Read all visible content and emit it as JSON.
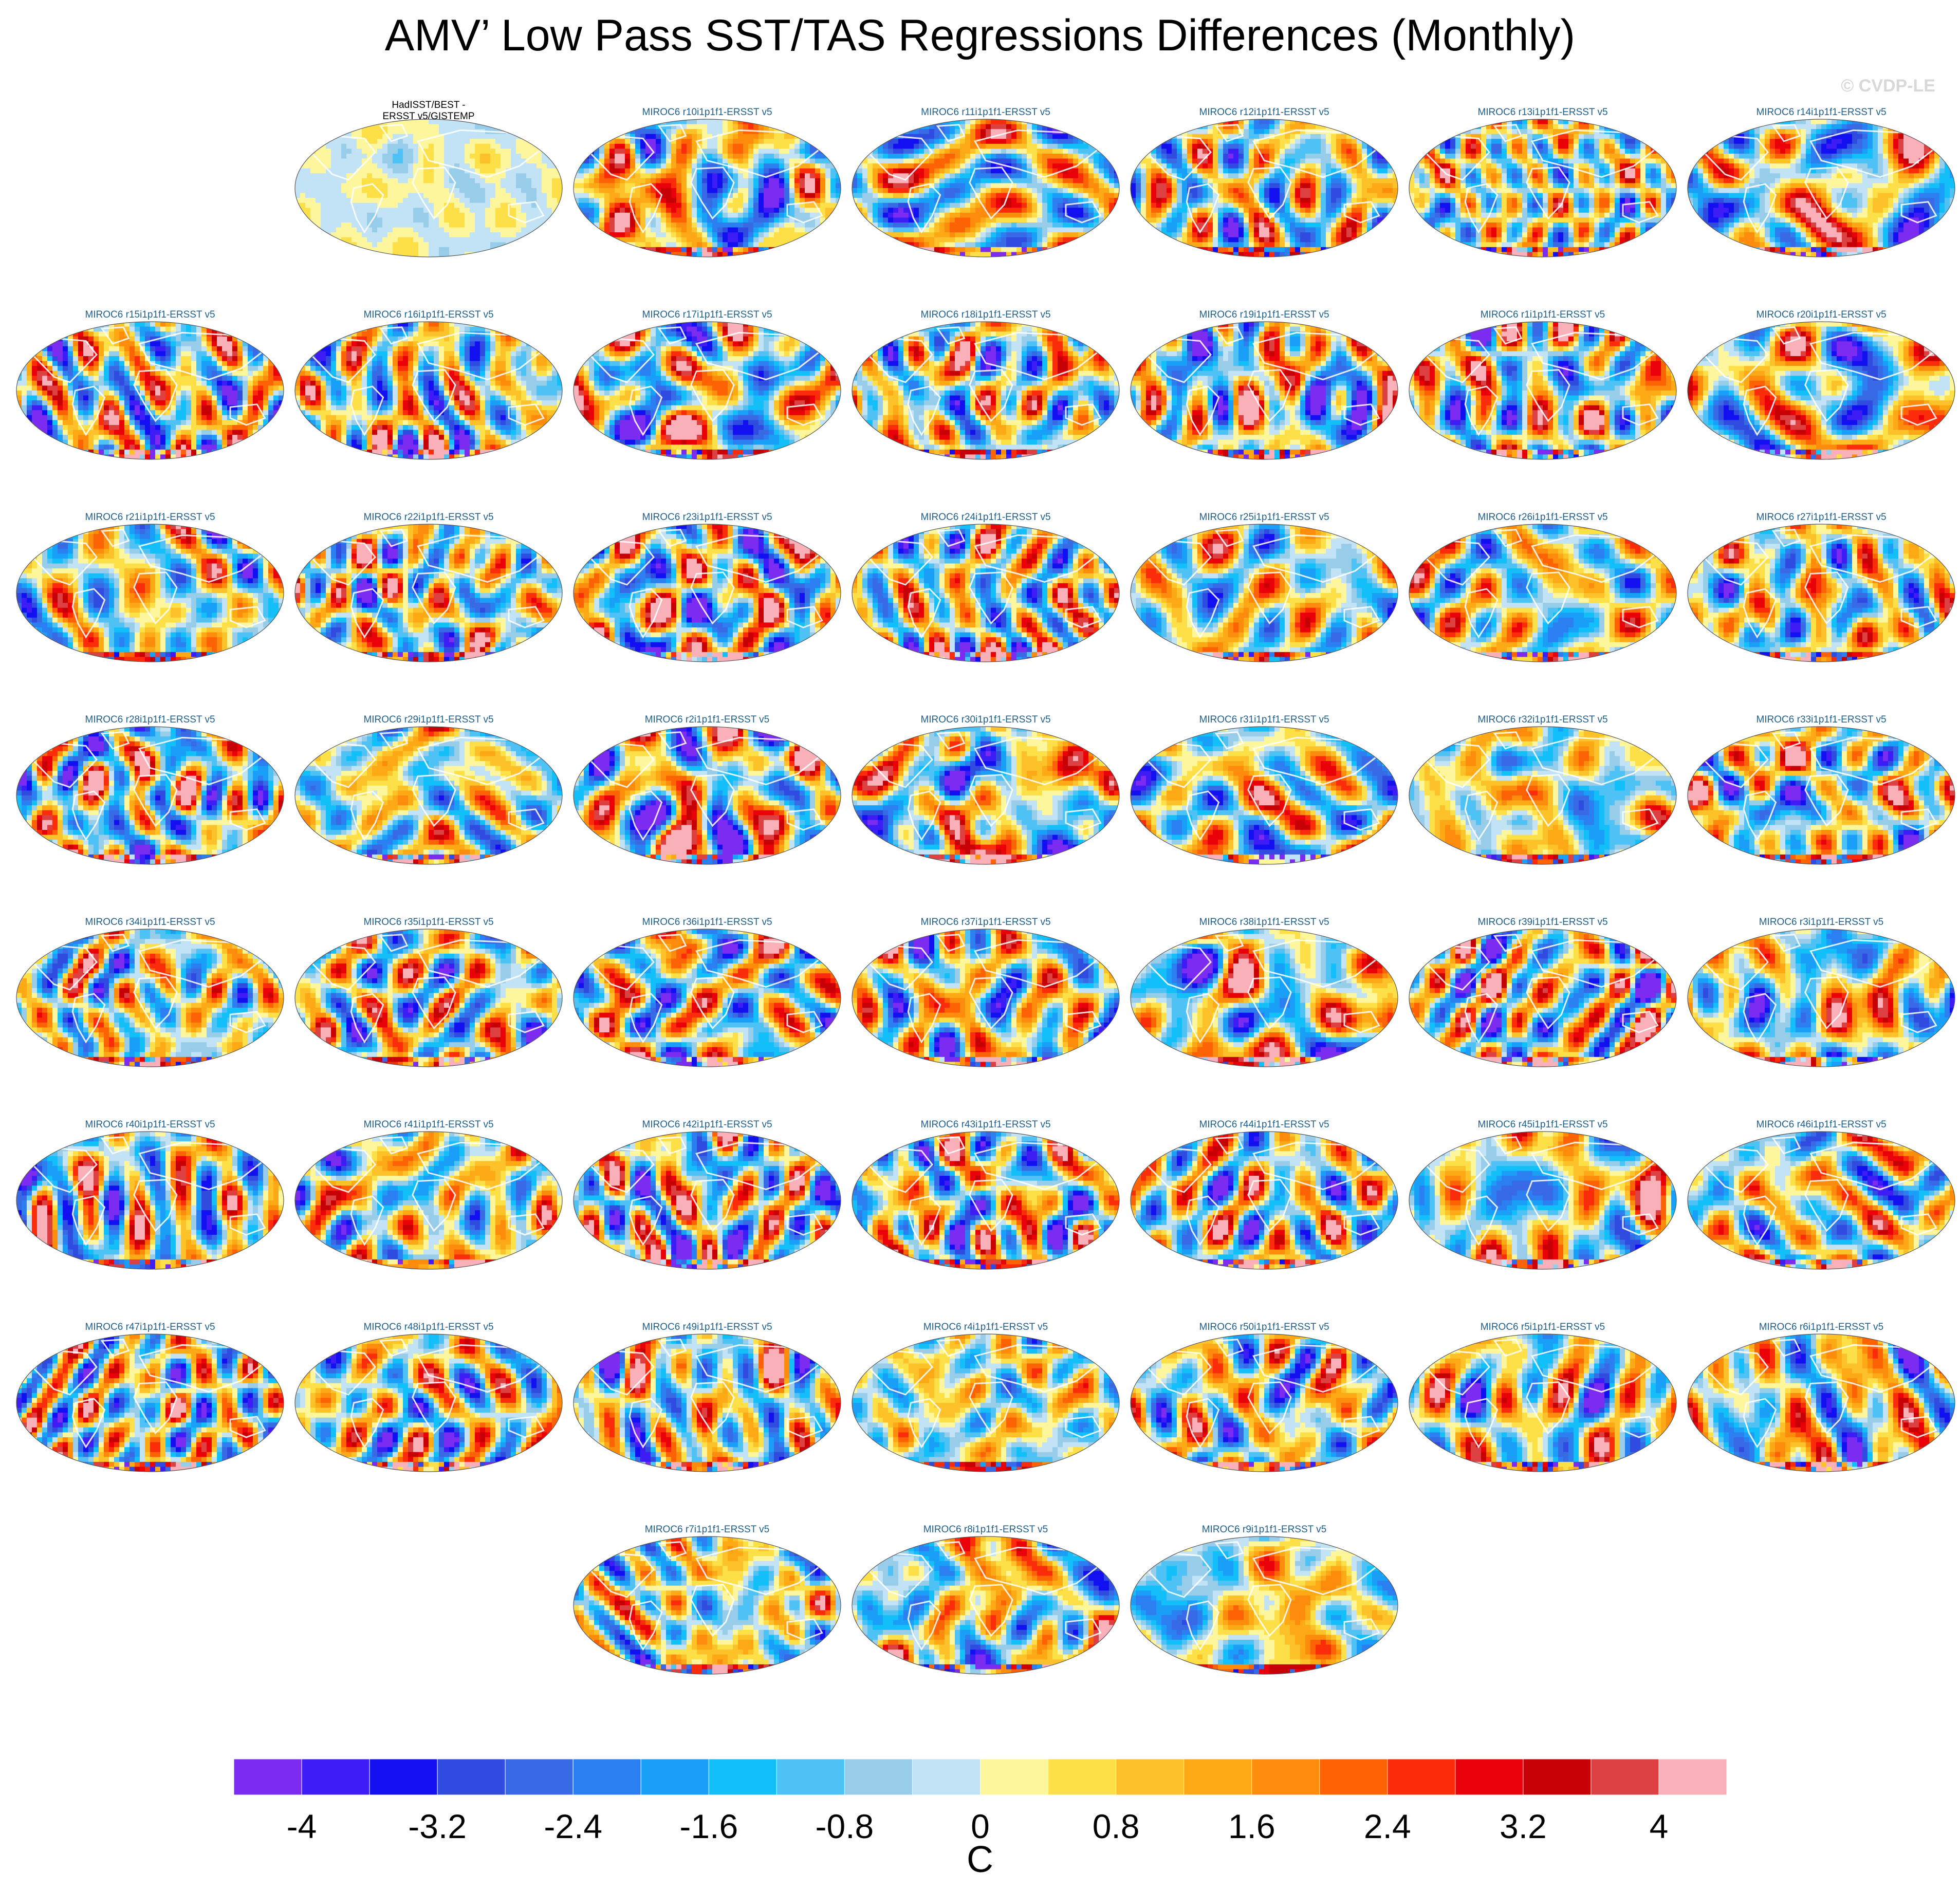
{
  "figure": {
    "title": "AMV’ Low Pass SST/TAS Regressions Differences (Monthly)",
    "copyright": "© CVDP-LE",
    "units": "C"
  },
  "chart_data": {
    "type": "heatmap",
    "title": "AMV’ Low Pass SST/TAS Regressions Differences (Monthly)",
    "projection": "Robinson global maps (ocean SST / land TAS difference fields)",
    "units": "C",
    "layout": {
      "rows": 8,
      "columns": 7
    },
    "panels": [
      {
        "row": 0,
        "col": 1,
        "label": "HadISST/BEST -\nERSST v5/GISTEMP",
        "kind": "observations"
      },
      {
        "row": 0,
        "col": 2,
        "label": "MIROC6 r10i1p1f1-ERSST v5",
        "kind": "member"
      },
      {
        "row": 0,
        "col": 3,
        "label": "MIROC6 r11i1p1f1-ERSST v5",
        "kind": "member"
      },
      {
        "row": 0,
        "col": 4,
        "label": "MIROC6 r12i1p1f1-ERSST v5",
        "kind": "member"
      },
      {
        "row": 0,
        "col": 5,
        "label": "MIROC6 r13i1p1f1-ERSST v5",
        "kind": "member"
      },
      {
        "row": 0,
        "col": 6,
        "label": "MIROC6 r14i1p1f1-ERSST v5",
        "kind": "member"
      },
      {
        "row": 1,
        "col": 0,
        "label": "MIROC6 r15i1p1f1-ERSST v5",
        "kind": "member"
      },
      {
        "row": 1,
        "col": 1,
        "label": "MIROC6 r16i1p1f1-ERSST v5",
        "kind": "member"
      },
      {
        "row": 1,
        "col": 2,
        "label": "MIROC6 r17i1p1f1-ERSST v5",
        "kind": "member"
      },
      {
        "row": 1,
        "col": 3,
        "label": "MIROC6 r18i1p1f1-ERSST v5",
        "kind": "member"
      },
      {
        "row": 1,
        "col": 4,
        "label": "MIROC6 r19i1p1f1-ERSST v5",
        "kind": "member"
      },
      {
        "row": 1,
        "col": 5,
        "label": "MIROC6 r1i1p1f1-ERSST v5",
        "kind": "member"
      },
      {
        "row": 1,
        "col": 6,
        "label": "MIROC6 r20i1p1f1-ERSST v5",
        "kind": "member"
      },
      {
        "row": 2,
        "col": 0,
        "label": "MIROC6 r21i1p1f1-ERSST v5",
        "kind": "member"
      },
      {
        "row": 2,
        "col": 1,
        "label": "MIROC6 r22i1p1f1-ERSST v5",
        "kind": "member"
      },
      {
        "row": 2,
        "col": 2,
        "label": "MIROC6 r23i1p1f1-ERSST v5",
        "kind": "member"
      },
      {
        "row": 2,
        "col": 3,
        "label": "MIROC6 r24i1p1f1-ERSST v5",
        "kind": "member"
      },
      {
        "row": 2,
        "col": 4,
        "label": "MIROC6 r25i1p1f1-ERSST v5",
        "kind": "member"
      },
      {
        "row": 2,
        "col": 5,
        "label": "MIROC6 r26i1p1f1-ERSST v5",
        "kind": "member"
      },
      {
        "row": 2,
        "col": 6,
        "label": "MIROC6 r27i1p1f1-ERSST v5",
        "kind": "member"
      },
      {
        "row": 3,
        "col": 0,
        "label": "MIROC6 r28i1p1f1-ERSST v5",
        "kind": "member"
      },
      {
        "row": 3,
        "col": 1,
        "label": "MIROC6 r29i1p1f1-ERSST v5",
        "kind": "member"
      },
      {
        "row": 3,
        "col": 2,
        "label": "MIROC6 r2i1p1f1-ERSST v5",
        "kind": "member"
      },
      {
        "row": 3,
        "col": 3,
        "label": "MIROC6 r30i1p1f1-ERSST v5",
        "kind": "member"
      },
      {
        "row": 3,
        "col": 4,
        "label": "MIROC6 r31i1p1f1-ERSST v5",
        "kind": "member"
      },
      {
        "row": 3,
        "col": 5,
        "label": "MIROC6 r32i1p1f1-ERSST v5",
        "kind": "member"
      },
      {
        "row": 3,
        "col": 6,
        "label": "MIROC6 r33i1p1f1-ERSST v5",
        "kind": "member"
      },
      {
        "row": 4,
        "col": 0,
        "label": "MIROC6 r34i1p1f1-ERSST v5",
        "kind": "member"
      },
      {
        "row": 4,
        "col": 1,
        "label": "MIROC6 r35i1p1f1-ERSST v5",
        "kind": "member"
      },
      {
        "row": 4,
        "col": 2,
        "label": "MIROC6 r36i1p1f1-ERSST v5",
        "kind": "member"
      },
      {
        "row": 4,
        "col": 3,
        "label": "MIROC6 r37i1p1f1-ERSST v5",
        "kind": "member"
      },
      {
        "row": 4,
        "col": 4,
        "label": "MIROC6 r38i1p1f1-ERSST v5",
        "kind": "member"
      },
      {
        "row": 4,
        "col": 5,
        "label": "MIROC6 r39i1p1f1-ERSST v5",
        "kind": "member"
      },
      {
        "row": 4,
        "col": 6,
        "label": "MIROC6 r3i1p1f1-ERSST v5",
        "kind": "member"
      },
      {
        "row": 5,
        "col": 0,
        "label": "MIROC6 r40i1p1f1-ERSST v5",
        "kind": "member"
      },
      {
        "row": 5,
        "col": 1,
        "label": "MIROC6 r41i1p1f1-ERSST v5",
        "kind": "member"
      },
      {
        "row": 5,
        "col": 2,
        "label": "MIROC6 r42i1p1f1-ERSST v5",
        "kind": "member"
      },
      {
        "row": 5,
        "col": 3,
        "label": "MIROC6 r43i1p1f1-ERSST v5",
        "kind": "member"
      },
      {
        "row": 5,
        "col": 4,
        "label": "MIROC6 r44i1p1f1-ERSST v5",
        "kind": "member"
      },
      {
        "row": 5,
        "col": 5,
        "label": "MIROC6 r45i1p1f1-ERSST v5",
        "kind": "member"
      },
      {
        "row": 5,
        "col": 6,
        "label": "MIROC6 r46i1p1f1-ERSST v5",
        "kind": "member"
      },
      {
        "row": 6,
        "col": 0,
        "label": "MIROC6 r47i1p1f1-ERSST v5",
        "kind": "member"
      },
      {
        "row": 6,
        "col": 1,
        "label": "MIROC6 r48i1p1f1-ERSST v5",
        "kind": "member"
      },
      {
        "row": 6,
        "col": 2,
        "label": "MIROC6 r49i1p1f1-ERSST v5",
        "kind": "member"
      },
      {
        "row": 6,
        "col": 3,
        "label": "MIROC6 r4i1p1f1-ERSST v5",
        "kind": "member"
      },
      {
        "row": 6,
        "col": 4,
        "label": "MIROC6 r50i1p1f1-ERSST v5",
        "kind": "member"
      },
      {
        "row": 6,
        "col": 5,
        "label": "MIROC6 r5i1p1f1-ERSST v5",
        "kind": "member"
      },
      {
        "row": 6,
        "col": 6,
        "label": "MIROC6 r6i1p1f1-ERSST v5",
        "kind": "member"
      },
      {
        "row": 7,
        "col": 2,
        "label": "MIROC6 r7i1p1f1-ERSST v5",
        "kind": "member"
      },
      {
        "row": 7,
        "col": 3,
        "label": "MIROC6 r8i1p1f1-ERSST v5",
        "kind": "member"
      },
      {
        "row": 7,
        "col": 4,
        "label": "MIROC6 r9i1p1f1-ERSST v5",
        "kind": "member"
      }
    ],
    "colorbar": {
      "min": -4.4,
      "max": 4.4,
      "step": 0.4,
      "colors": [
        "#7b2cf0",
        "#3d1cf5",
        "#1210f0",
        "#2f4be0",
        "#386ae6",
        "#2b7ff0",
        "#199ff7",
        "#12bff9",
        "#4ec2f4",
        "#98cdea",
        "#c1e3f5",
        "#fef69c",
        "#fde047",
        "#fdc12a",
        "#fda815",
        "#fd8b0c",
        "#fd6305",
        "#fb2c0a",
        "#e90009",
        "#c60005",
        "#dc4040",
        "#f9b0b8"
      ],
      "tick_values": [
        -4,
        -3.2,
        -2.4,
        -1.6,
        -0.8,
        0,
        0.8,
        1.6,
        2.4,
        3.2,
        4
      ],
      "tick_labels": [
        "-4",
        "-3.2",
        "-2.4",
        "-1.6",
        "-0.8",
        "0",
        "0.8",
        "1.6",
        "2.4",
        "3.2",
        "4"
      ],
      "label": "C"
    }
  }
}
